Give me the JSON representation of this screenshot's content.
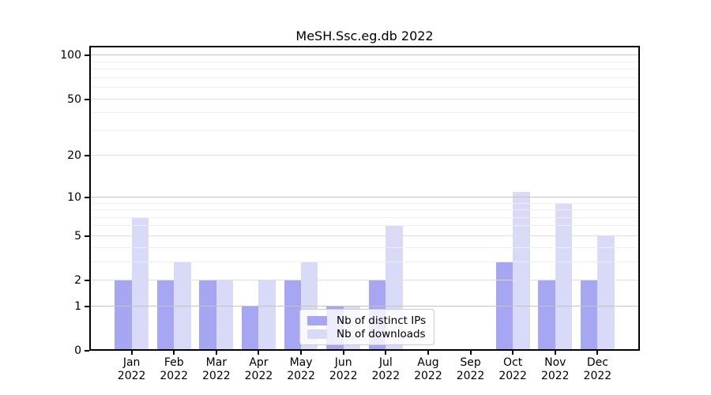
{
  "chart_data": {
    "type": "bar",
    "title": "MeSH.Ssc.eg.db 2022",
    "x_axis": {
      "months": [
        "Jan",
        "Feb",
        "Mar",
        "Apr",
        "May",
        "Jun",
        "Jul",
        "Aug",
        "Sep",
        "Oct",
        "Nov",
        "Dec"
      ],
      "year": "2022"
    },
    "y_axis": {
      "scale": "log1p",
      "tick_labels": [
        0,
        1,
        2,
        5,
        10,
        20,
        50,
        100
      ],
      "decade_gridlines": [
        1,
        10,
        100
      ],
      "mid_gridlines": [
        2,
        5,
        20,
        50
      ],
      "minor_gridlines": [
        3,
        4,
        6,
        7,
        8,
        9,
        30,
        40,
        60,
        70,
        80,
        90
      ],
      "ylim": [
        0,
        116
      ],
      "grid": "horizontal"
    },
    "series": [
      {
        "name": "Nb of distinct IPs",
        "color": "#a6a6f2",
        "values": [
          2,
          2,
          2,
          1,
          2,
          1,
          2,
          0,
          0,
          3,
          2,
          2
        ]
      },
      {
        "name": "Nb of downloads",
        "color": "#d9d9f8",
        "values": [
          7,
          3,
          2,
          2,
          3,
          1,
          6,
          0,
          0,
          11,
          9,
          5
        ]
      }
    ],
    "legend_position": "bottom-center"
  },
  "colors": {
    "axis": "#000000",
    "decade_grid": "#c3c3c3",
    "mid_grid": "#dedede",
    "minor_grid": "#efefef",
    "legend_border": "#cccccc"
  }
}
